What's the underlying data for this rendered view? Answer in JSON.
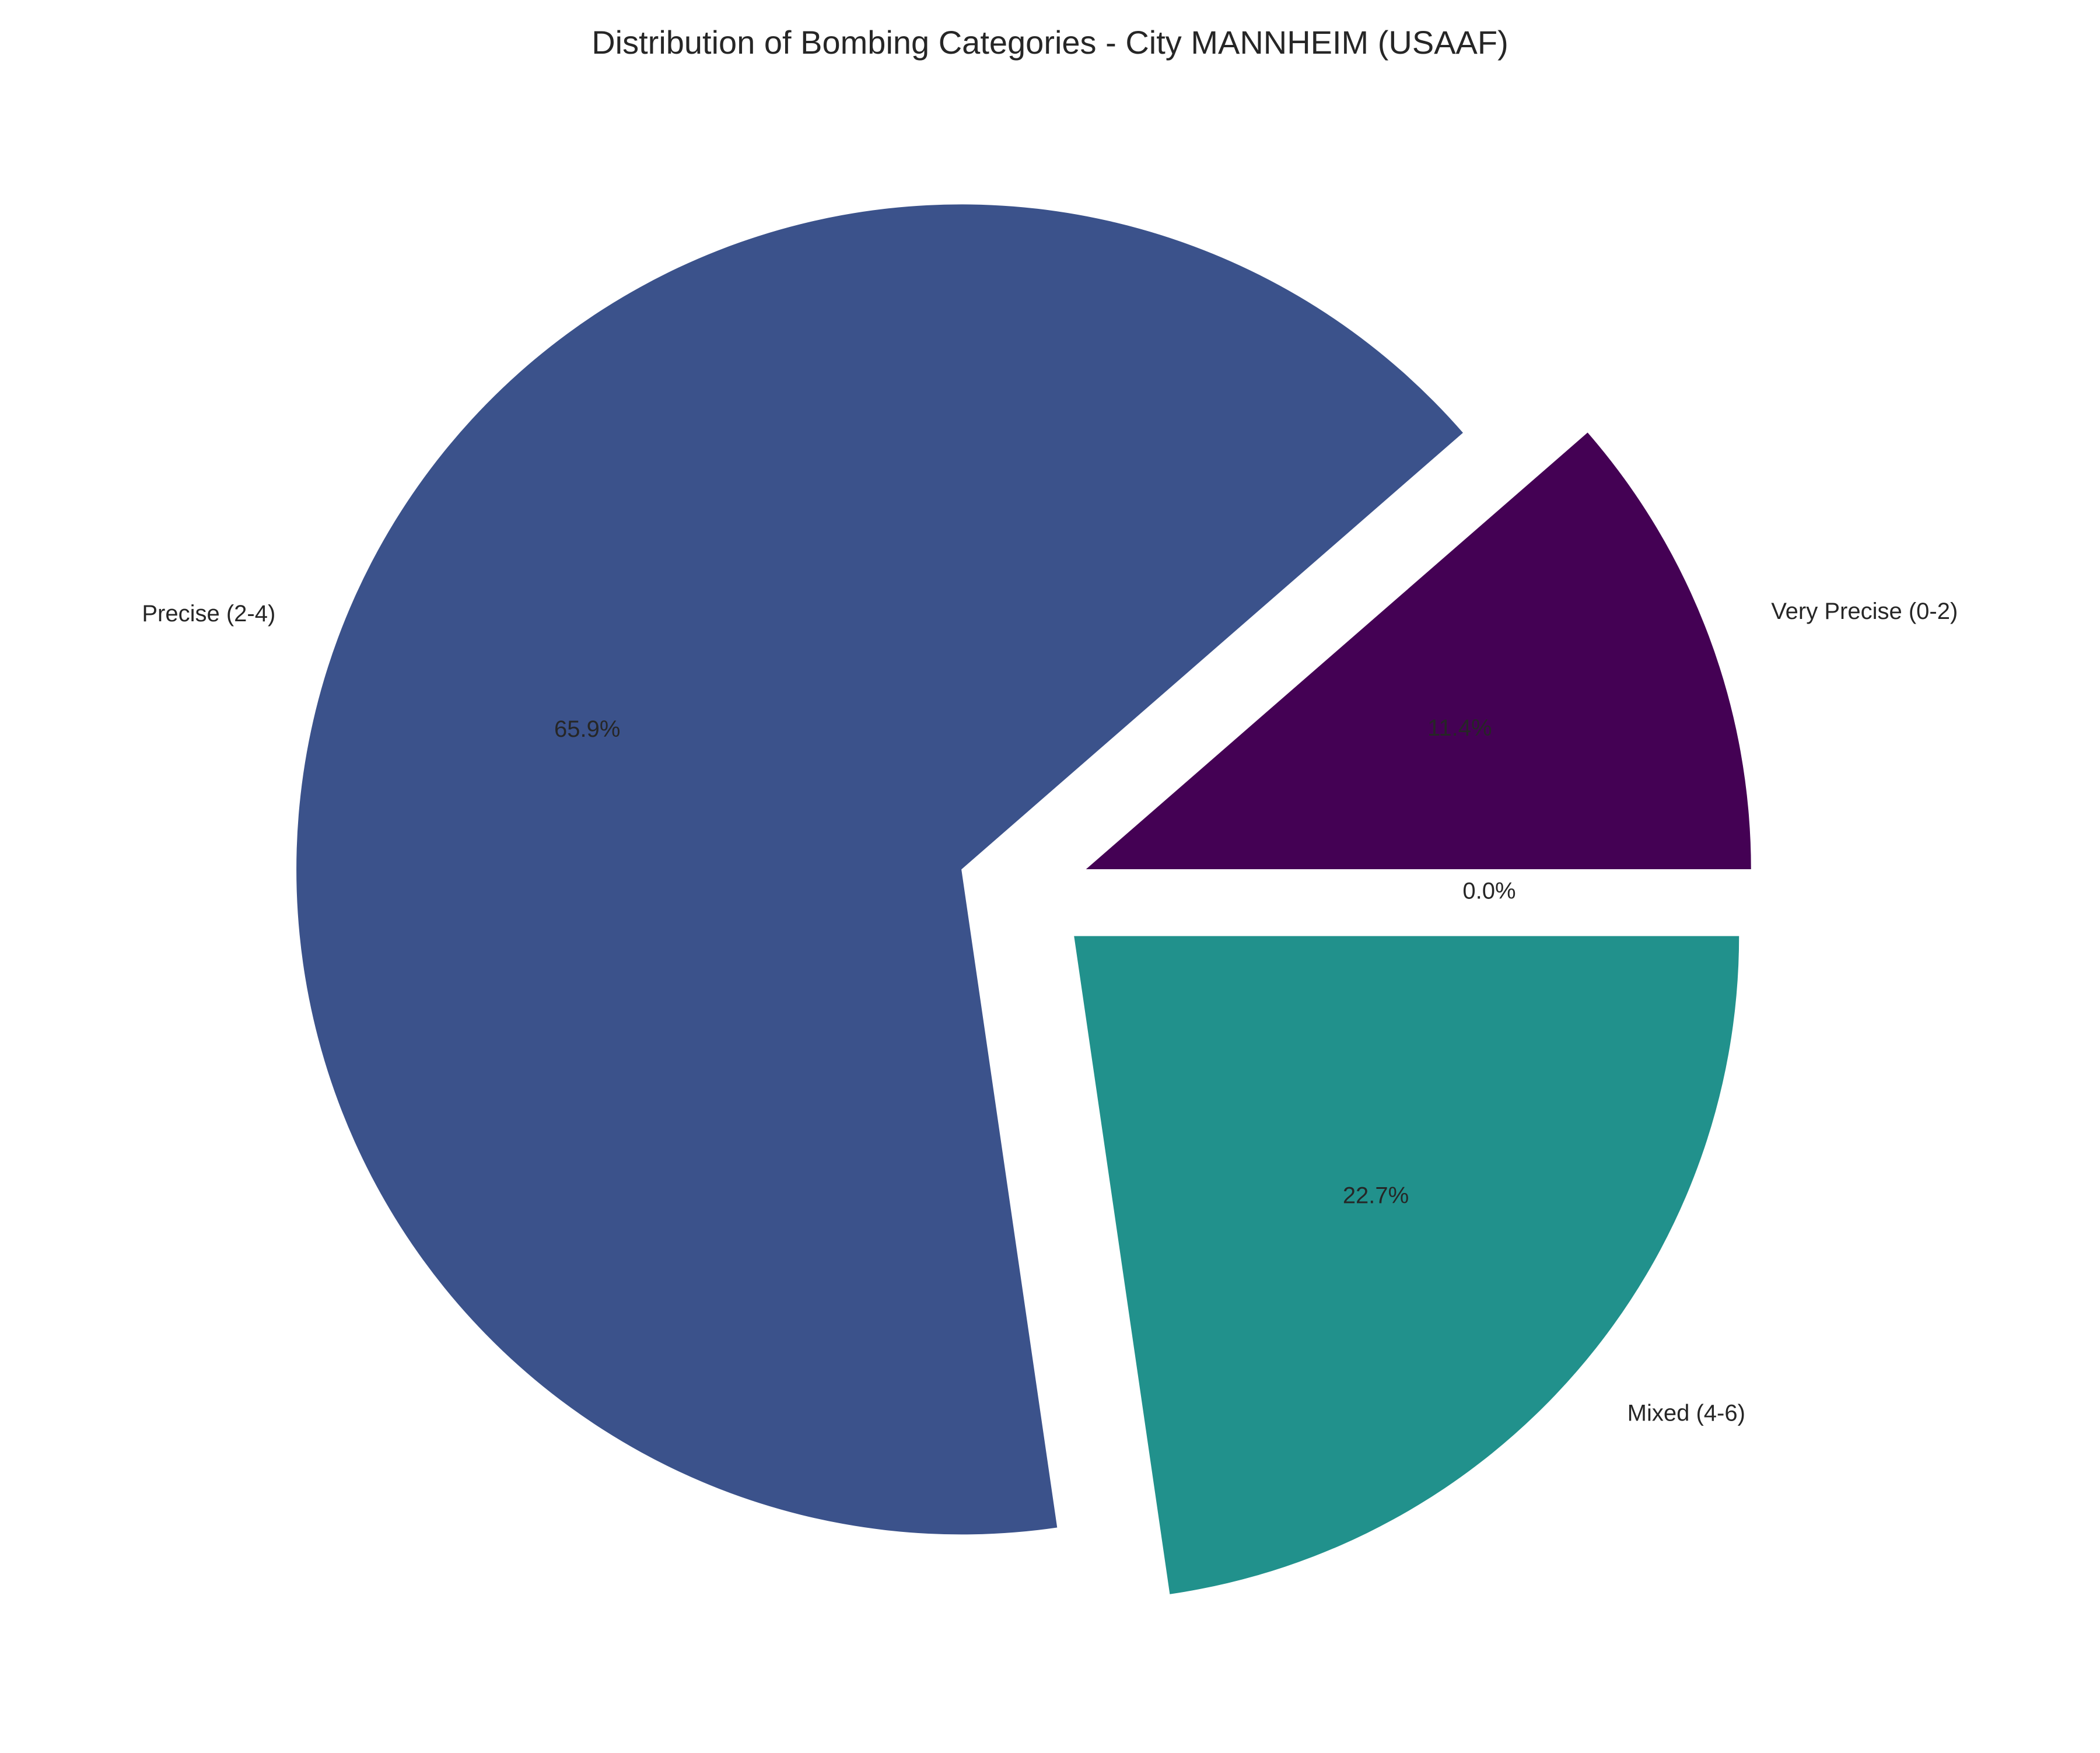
{
  "chart_data": {
    "type": "pie",
    "title": "Distribution of Bombing Categories - City MANNHEIM (USAAF)",
    "start_angle_deg": 0,
    "direction": "counterclockwise",
    "slices": [
      {
        "label": "Very Precise (0-2)",
        "value": 11.4,
        "pct_label": "11.4%",
        "color": "#440154",
        "exploded": true
      },
      {
        "label": "Precise (2-4)",
        "value": 65.9,
        "pct_label": "65.9%",
        "color": "#3b528b",
        "exploded": true
      },
      {
        "label": "Mixed (4-6)",
        "value": 22.7,
        "pct_label": "22.7%",
        "color": "#21918c",
        "exploded": true
      },
      {
        "label": "",
        "value": 0.0,
        "pct_label": "0.0%",
        "color": "#5ec962",
        "exploded": true
      }
    ]
  }
}
